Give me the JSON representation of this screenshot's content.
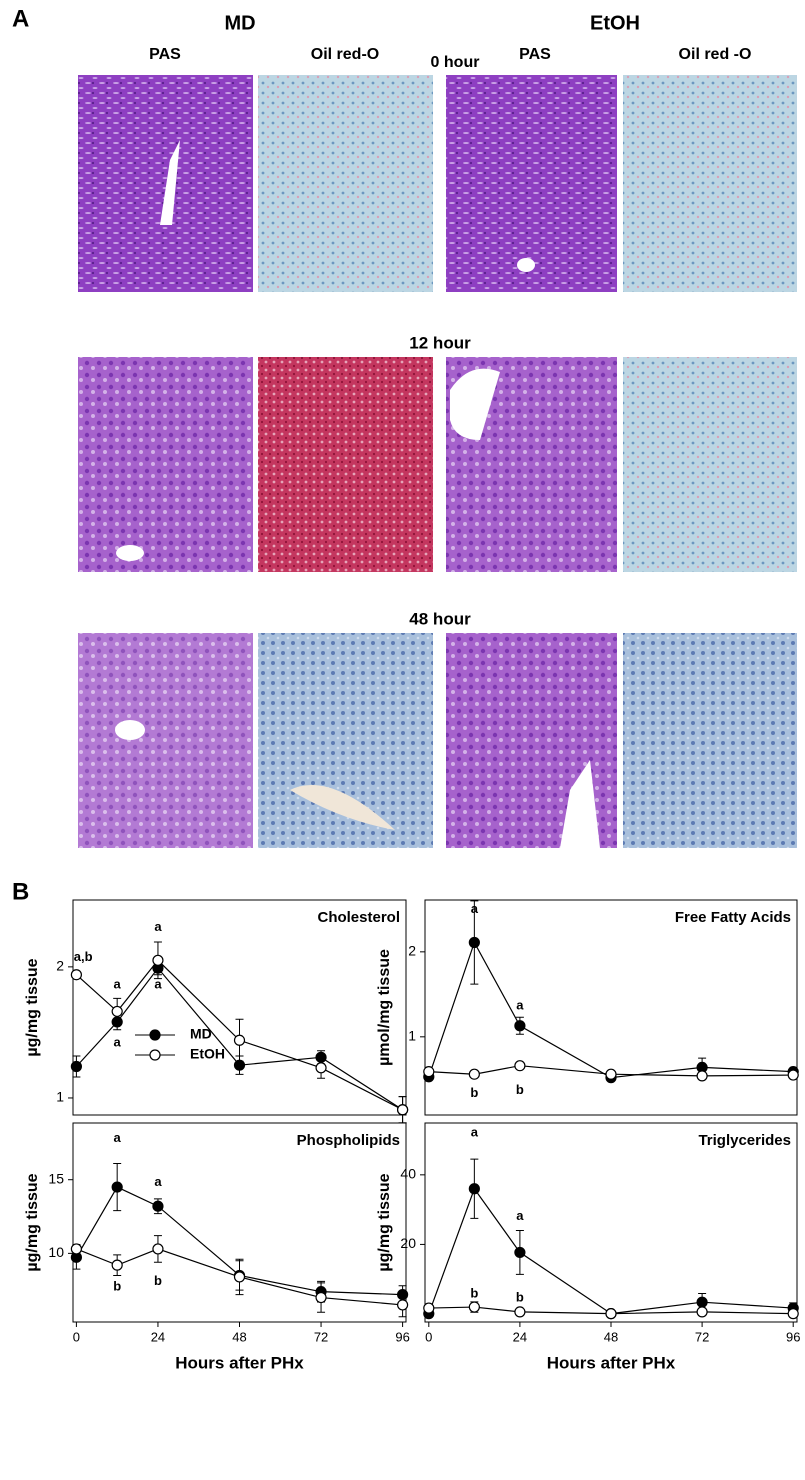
{
  "panel_a": {
    "label": "A",
    "groups": [
      "MD",
      "EtOH"
    ],
    "columns": [
      "PAS",
      "Oil red-O",
      "PAS",
      "Oil red -O"
    ],
    "rows": [
      "0 hour",
      "12 hour",
      "48 hour"
    ]
  },
  "panel_b": {
    "label": "B"
  },
  "chart_data": [
    {
      "type": "line",
      "title": "Cholesterol",
      "ylabel": "µg/mg tissue",
      "x": [
        0,
        12,
        24,
        48,
        72,
        96
      ],
      "xlim": [
        -1,
        97
      ],
      "ylim": [
        0.87,
        2.51
      ],
      "yticks": [
        1,
        2
      ],
      "legend": "lower left",
      "series": [
        {
          "name": "MD",
          "color": "#000000",
          "marker_fill": "#000000",
          "values": [
            1.24,
            1.58,
            1.99,
            1.25,
            1.31,
            0.91
          ],
          "errors": [
            0.08,
            0.06,
            0.05,
            0.07,
            0.05,
            0.1
          ]
        },
        {
          "name": "EtOH",
          "color": "#000000",
          "marker_fill": "#ffffff",
          "values": [
            1.94,
            1.66,
            2.05,
            1.44,
            1.23,
            0.91
          ],
          "errors": [
            0.02,
            0.1,
            0.14,
            0.16,
            0.08,
            0.1
          ]
        }
      ],
      "annotations": [
        {
          "text": "a,b",
          "x": 2,
          "y": 2.07
        },
        {
          "text": "a",
          "x": 12,
          "y": 1.86
        },
        {
          "text": "a",
          "x": 12,
          "y": 1.42
        },
        {
          "text": "a",
          "x": 24,
          "y": 2.3
        },
        {
          "text": "a",
          "x": 24,
          "y": 1.86
        }
      ]
    },
    {
      "type": "line",
      "title": "Free Fatty Acids",
      "ylabel": "µmol/mg tissue",
      "x": [
        0,
        12,
        24,
        48,
        72,
        96
      ],
      "xlim": [
        -1,
        97
      ],
      "ylim": [
        0.08,
        2.61
      ],
      "yticks": [
        1,
        2
      ],
      "series": [
        {
          "color": "#000000",
          "marker_fill": "#000000",
          "values": [
            0.53,
            2.11,
            1.13,
            0.52,
            0.64,
            0.59
          ],
          "errors": [
            0.03,
            0.49,
            0.1,
            0.03,
            0.11,
            0.04
          ]
        },
        {
          "color": "#000000",
          "marker_fill": "#ffffff",
          "values": [
            0.59,
            0.56,
            0.66,
            0.56,
            0.54,
            0.55
          ],
          "errors": [
            0.03,
            0.03,
            0.03,
            0.03,
            0.03,
            0.03
          ]
        }
      ],
      "annotations": [
        {
          "text": "a",
          "x": 12,
          "y": 2.5
        },
        {
          "text": "a",
          "x": 24,
          "y": 1.36
        },
        {
          "text": "b",
          "x": 12,
          "y": 0.33
        },
        {
          "text": "b",
          "x": 24,
          "y": 0.37
        }
      ]
    },
    {
      "type": "line",
      "title": "Phospholipids",
      "ylabel": "µg/mg tissue",
      "xlabel": "Hours after PHx",
      "x": [
        0,
        12,
        24,
        48,
        72,
        96
      ],
      "xlim": [
        -1,
        97
      ],
      "ylim": [
        5.34,
        18.85
      ],
      "xticks": [
        0,
        24,
        48,
        72,
        96
      ],
      "yticks": [
        10,
        15
      ],
      "series": [
        {
          "color": "#000000",
          "marker_fill": "#000000",
          "values": [
            9.73,
            14.5,
            13.2,
            8.5,
            7.4,
            7.2
          ],
          "errors": [
            0.8,
            1.6,
            0.5,
            1.0,
            0.7,
            0.6
          ]
        },
        {
          "color": "#000000",
          "marker_fill": "#ffffff",
          "values": [
            10.3,
            9.2,
            10.3,
            8.4,
            7.0,
            6.5
          ],
          "errors": [
            0.3,
            0.7,
            0.9,
            1.2,
            1.0,
            0.8
          ]
        }
      ],
      "annotations": [
        {
          "text": "a",
          "x": 12,
          "y": 17.8
        },
        {
          "text": "a",
          "x": 24,
          "y": 14.8
        },
        {
          "text": "b",
          "x": 12,
          "y": 7.7
        },
        {
          "text": "b",
          "x": 24,
          "y": 8.1
        }
      ]
    },
    {
      "type": "line",
      "title": "Triglycerides",
      "ylabel": "µg/mg tissue",
      "xlabel": "Hours after PHx",
      "x": [
        0,
        12,
        24,
        48,
        72,
        96
      ],
      "xlim": [
        -1,
        97
      ],
      "ylim": [
        -2.3,
        54.9
      ],
      "xticks": [
        0,
        24,
        48,
        72,
        96
      ],
      "yticks": [
        20,
        40
      ],
      "series": [
        {
          "color": "#000000",
          "marker_fill": "#000000",
          "values": [
            0.1,
            36,
            17.7,
            0.1,
            3.4,
            1.7
          ],
          "errors": [
            1,
            8.5,
            6.3,
            0.5,
            2.5,
            1.5
          ]
        },
        {
          "color": "#000000",
          "marker_fill": "#ffffff",
          "values": [
            1.7,
            2,
            0.6,
            0.1,
            0.6,
            0.1
          ],
          "errors": [
            1,
            1.5,
            0.5,
            0.5,
            1,
            1
          ]
        }
      ],
      "annotations": [
        {
          "text": "a",
          "x": 12,
          "y": 52
        },
        {
          "text": "a",
          "x": 24,
          "y": 28
        },
        {
          "text": "b",
          "x": 12,
          "y": 5.8
        },
        {
          "text": "b",
          "x": 24,
          "y": 4.6
        }
      ]
    }
  ]
}
